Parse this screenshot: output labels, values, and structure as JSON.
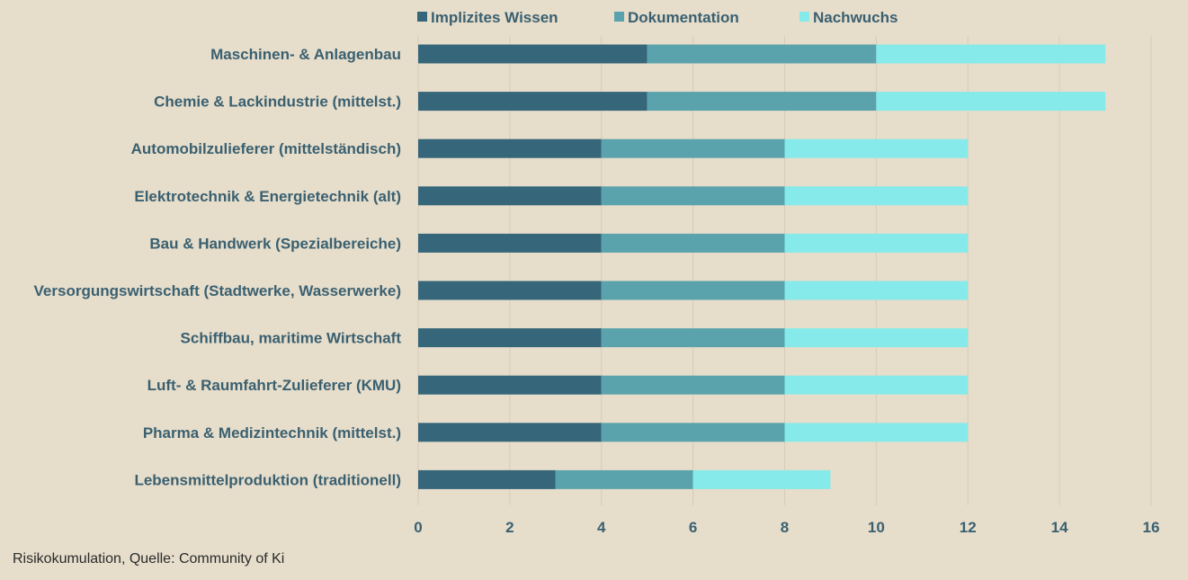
{
  "caption": "Risikokumulation, Quelle: Community of Ki",
  "chart_data": {
    "type": "bar",
    "orientation": "horizontal",
    "stacked": true,
    "categories": [
      "Maschinen- & Anlagenbau",
      "Chemie & Lackindustrie (mittelst.)",
      "Automobilzulieferer (mittelständisch)",
      "Elektrotechnik & Energietechnik (alt)",
      "Bau & Handwerk (Spezialbereiche)",
      "Versorgungswirtschaft (Stadtwerke, Wasserwerke)",
      "Schiffbau, maritime Wirtschaft",
      "Luft- & Raumfahrt-Zulieferer (KMU)",
      "Pharma & Medizintechnik (mittelst.)",
      "Lebensmittelproduktion (traditionell)"
    ],
    "series": [
      {
        "name": "Implizites Wissen",
        "color": "#35667a",
        "values": [
          5,
          5,
          4,
          4,
          4,
          4,
          4,
          4,
          4,
          3
        ]
      },
      {
        "name": "Dokumentation",
        "color": "#5ba3ac",
        "values": [
          5,
          5,
          4,
          4,
          4,
          4,
          4,
          4,
          4,
          3
        ]
      },
      {
        "name": "Nachwuchs",
        "color": "#86eaea",
        "values": [
          5,
          5,
          4,
          4,
          4,
          4,
          4,
          4,
          4,
          3
        ]
      }
    ],
    "xlim": [
      0,
      16
    ],
    "xticks": [
      "0",
      "2",
      "4",
      "6",
      "8",
      "10",
      "12",
      "14",
      "16"
    ],
    "grid": "vertical",
    "legend_position": "top",
    "title": "",
    "xlabel": "",
    "ylabel": ""
  }
}
